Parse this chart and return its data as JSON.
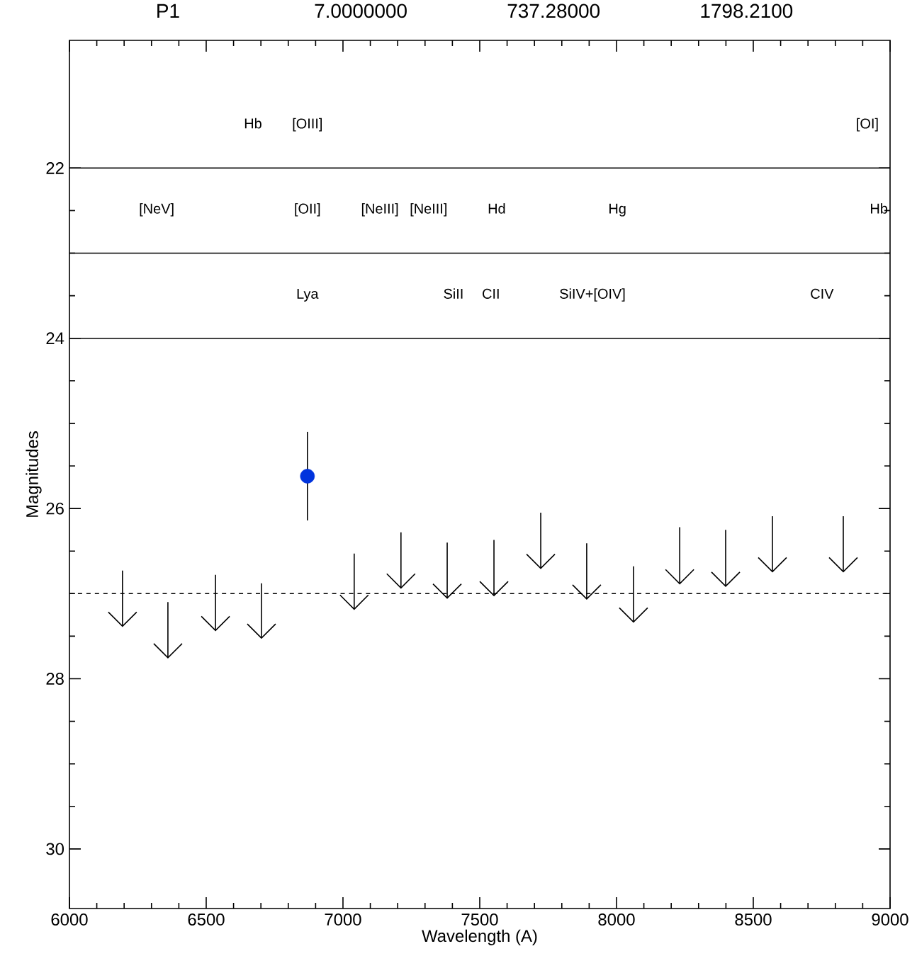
{
  "chart_data": {
    "type": "scatter",
    "xlabel": "Wavelength (A)",
    "ylabel": "Magnitudes",
    "xlim": [
      6000,
      9000
    ],
    "ylim": [
      30.7,
      20.5
    ],
    "xticks": [
      6000,
      6500,
      7000,
      7500,
      8000,
      8500,
      9000
    ],
    "yticks": [
      22,
      24,
      26,
      28,
      30
    ],
    "series": [
      {
        "color": "#0033dd",
        "marker": "circle",
        "x": [
          6870
        ],
        "values": [
          25.62
        ],
        "errors": [
          0.52
        ]
      },
      {
        "color": "#000000",
        "x": [
          6194,
          6360,
          6534,
          6702,
          7041,
          7212,
          7381,
          7552,
          7723,
          7891,
          8062,
          8231,
          8399,
          8570,
          8829
        ],
        "values": [
          27.3,
          27.67,
          27.35,
          27.44,
          27.1,
          26.85,
          26.97,
          26.94,
          26.62,
          26.98,
          27.25,
          26.8,
          26.83,
          26.66,
          26.66
        ],
        "errors": [
          [
            26.73,
            27.38
          ],
          [
            27.1,
            27.75
          ],
          [
            26.78,
            27.43
          ],
          [
            26.88,
            27.52
          ],
          [
            26.53,
            27.18
          ],
          [
            26.28,
            26.93
          ],
          [
            26.4,
            27.05
          ],
          [
            26.37,
            27.02
          ],
          [
            26.05,
            26.7
          ],
          [
            26.41,
            27.06
          ],
          [
            26.68,
            27.33
          ],
          [
            26.22,
            26.88
          ],
          [
            26.25,
            26.91
          ],
          [
            26.09,
            26.74
          ],
          [
            26.09,
            26.74
          ]
        ]
      }
    ],
    "ref_lines": [
      {
        "axis": "y",
        "value": 22,
        "line_style": "solid",
        "color": "#000000"
      },
      {
        "axis": "y",
        "value": 23,
        "line_style": "solid",
        "color": "#000000"
      },
      {
        "axis": "y",
        "value": 24,
        "line_style": "solid",
        "color": "#000000"
      },
      {
        "axis": "y",
        "value": 27,
        "line_style": "dashed",
        "color": "#000000"
      }
    ],
    "annotations": [
      "P1",
      "7.0000000",
      "737.28000",
      "1798.2100",
      {
        "text": "Hb",
        "x": 6671,
        "y": 22
      },
      {
        "text": "[OIII]",
        "x": 6870,
        "y": 22
      },
      {
        "text": "[OI]",
        "x": 8917,
        "y": 22
      },
      {
        "text": "[NeV]",
        "x": 6319,
        "y": 23
      },
      {
        "text": "[OII]",
        "x": 6870,
        "y": 23
      },
      {
        "text": "[NeIII]",
        "x": 7135,
        "y": 23
      },
      {
        "text": "[NeIII]",
        "x": 7313,
        "y": 23
      },
      {
        "text": "Hd",
        "x": 7562,
        "y": 23
      },
      {
        "text": "Hg",
        "x": 8003,
        "y": 23
      },
      {
        "text": "Hb",
        "x": 8959,
        "y": 23
      },
      {
        "text": "Lya",
        "x": 6870,
        "y": 24
      },
      {
        "text": "SiII",
        "x": 7404,
        "y": 24
      },
      {
        "text": "CII",
        "x": 7541,
        "y": 24
      },
      {
        "text": "SiIV+[OIV]",
        "x": 7912,
        "y": 24
      },
      {
        "text": "CIV",
        "x": 8751,
        "y": 24
      }
    ]
  }
}
